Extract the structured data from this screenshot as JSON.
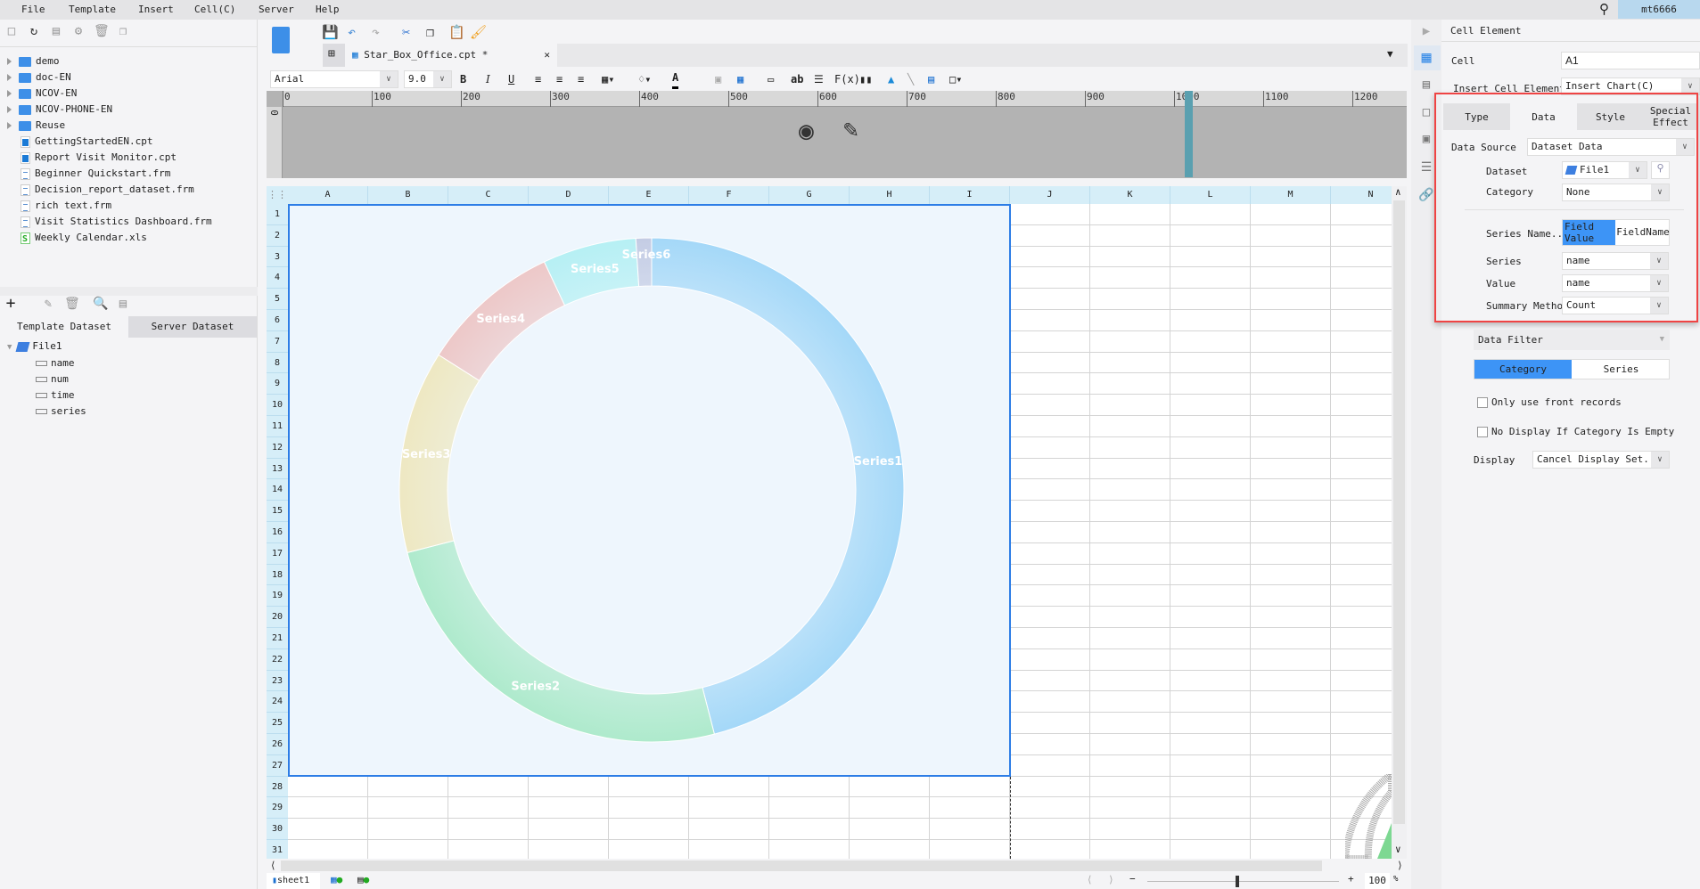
{
  "menu": [
    "File",
    "Template",
    "Insert",
    "Cell(C)",
    "Server",
    "Help"
  ],
  "user": "mt6666",
  "file_tree": [
    {
      "label": "demo",
      "type": "folder"
    },
    {
      "label": "doc-EN",
      "type": "folder"
    },
    {
      "label": "NCOV-EN",
      "type": "folder"
    },
    {
      "label": "NCOV-PHONE-EN",
      "type": "folder"
    },
    {
      "label": "Reuse",
      "type": "folder"
    },
    {
      "label": "GettingStartedEN.cpt",
      "type": "cpt"
    },
    {
      "label": "Report Visit Monitor.cpt",
      "type": "cpt"
    },
    {
      "label": "Beginner Quickstart.frm",
      "type": "frm"
    },
    {
      "label": "Decision_report_dataset.frm",
      "type": "frm"
    },
    {
      "label": "rich text.frm",
      "type": "frm"
    },
    {
      "label": "Visit Statistics Dashboard.frm",
      "type": "frm"
    },
    {
      "label": "Weekly Calendar.xls",
      "type": "xls"
    }
  ],
  "dataset_tabs": [
    "Template Dataset",
    "Server Dataset"
  ],
  "dataset": {
    "name": "File1",
    "fields": [
      "name",
      "num",
      "time",
      "series"
    ]
  },
  "editor": {
    "tab_title": "Star_Box_Office.cpt *",
    "font": "Arial",
    "font_size": "9.0",
    "ruler_ticks": [
      "0",
      "100",
      "200",
      "300",
      "400",
      "500",
      "600",
      "700",
      "800",
      "900",
      "1000",
      "1100",
      "1200"
    ],
    "ruler_side": "0",
    "columns": [
      "A",
      "B",
      "C",
      "D",
      "E",
      "F",
      "G",
      "H",
      "I",
      "J",
      "K",
      "L",
      "M",
      "N"
    ],
    "rows": [
      "1",
      "2",
      "3",
      "4",
      "5",
      "6",
      "7",
      "8",
      "9",
      "10",
      "11",
      "12",
      "13",
      "14",
      "15",
      "16",
      "17",
      "18",
      "19",
      "20",
      "21",
      "22",
      "23",
      "24",
      "25",
      "26",
      "27",
      "28",
      "29",
      "30",
      "31"
    ],
    "sheet": "sheet1",
    "zoom": "100",
    "zoom_unit": "%"
  },
  "chart_data": {
    "type": "pie",
    "variant": "donut",
    "categories": [
      "Series1",
      "Series2",
      "Series3",
      "Series4",
      "Series5",
      "Series6"
    ],
    "values": [
      46,
      25,
      13,
      9,
      6,
      1
    ],
    "colors": [
      "#a4d8f8",
      "#aeeacc",
      "#eee8c2",
      "#edc8c8",
      "#b6f0f4",
      "#c4cce4"
    ],
    "labels_shown": true
  },
  "panel": {
    "title": "Cell Element",
    "cell_label": "Cell",
    "cell_value": "A1",
    "insert_label": "Insert Cell Element",
    "insert_value": "Insert Chart(C)",
    "tabs": [
      "Type",
      "Data",
      "Style",
      "Special Effect"
    ],
    "active_tab": "Data",
    "data_source_label": "Data Source",
    "data_source_value": "Dataset Data",
    "dataset_label": "Dataset",
    "dataset_value": "File1",
    "category_label": "Category",
    "category_value": "None",
    "series_name_label": "Series Name...",
    "series_name_options": [
      "Field Value",
      "FieldName"
    ],
    "series_label": "Series",
    "series_value": "name",
    "value_label": "Value",
    "value_value": "name",
    "summary_label": "Summary Method",
    "summary_value": "Count",
    "data_filter_label": "Data Filter",
    "filter_tabs": [
      "Category",
      "Series"
    ],
    "only_front_label": "Only use front records",
    "no_display_label": "No Display If Category Is Empty",
    "display_label": "Display",
    "display_value": "Cancel Display Set..."
  },
  "accent": "#3d94f6",
  "highlight": "#ef4444"
}
